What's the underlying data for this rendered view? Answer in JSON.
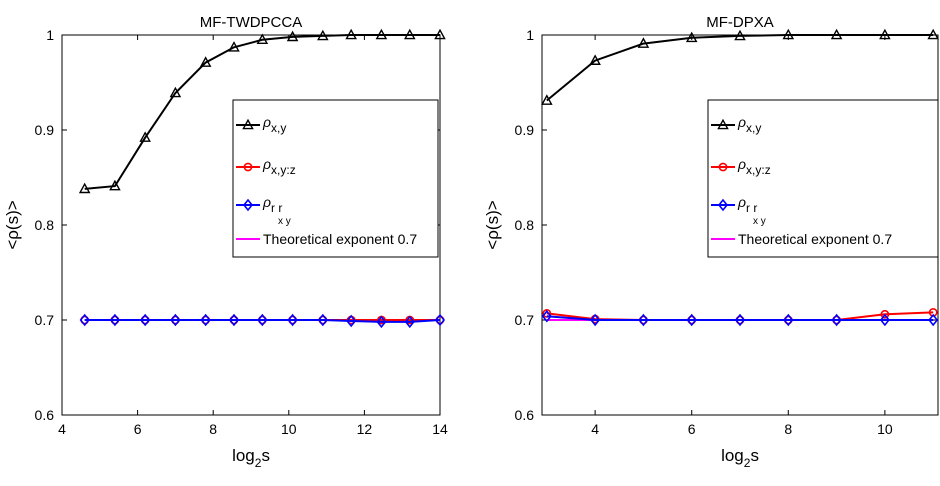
{
  "chart_data": [
    {
      "type": "line",
      "title": "MF-TWDPCCA",
      "xlabel_base": "log",
      "xlabel_sub": "2",
      "xlabel_tail": "s",
      "ylabel": "<ρ(s)>",
      "xlim": [
        4,
        14
      ],
      "ylim": [
        0.6,
        1.0
      ],
      "xticks": [
        4,
        6,
        8,
        10,
        12,
        14
      ],
      "yticks": [
        0.6,
        0.7,
        0.8,
        0.9,
        1.0
      ],
      "ytick_labels": [
        "0.6",
        "0.7",
        "0.8",
        "0.9",
        "1"
      ],
      "x": [
        4.6,
        5.4,
        6.2,
        7.0,
        7.8,
        8.55,
        9.3,
        10.1,
        10.9,
        11.65,
        12.45,
        13.2,
        14.0
      ],
      "legend": "top-right",
      "grid": false,
      "series": [
        {
          "name": "ρx,y",
          "name_main": "ρ",
          "name_sub": "x,y",
          "color": "#000000",
          "marker": "triangle",
          "values": [
            0.838,
            0.841,
            0.892,
            0.939,
            0.971,
            0.987,
            0.995,
            0.998,
            0.999,
            1.0,
            1.0,
            1.0,
            1.0
          ]
        },
        {
          "name": "ρx,y:z",
          "name_main": "ρ",
          "name_sub": "x,y:z",
          "color": "#ff0000",
          "marker": "circle",
          "values": [
            0.7,
            0.7,
            0.7,
            0.7,
            0.7,
            0.7,
            0.7,
            0.7,
            0.7,
            0.7,
            0.7,
            0.7,
            0.7
          ]
        },
        {
          "name": "ρrx ry",
          "name_main": "ρ",
          "name_sub": "r r",
          "name_subsub": "x y",
          "color": "#0000ff",
          "marker": "diamond",
          "values": [
            0.7,
            0.7,
            0.7,
            0.7,
            0.7,
            0.7,
            0.7,
            0.7,
            0.7,
            0.699,
            0.698,
            0.698,
            0.7
          ]
        },
        {
          "name": "Theoretical exponent 0.7",
          "color": "#ff00ff",
          "marker": "none",
          "values": [
            0.7,
            0.7,
            0.7,
            0.7,
            0.7,
            0.7,
            0.7,
            0.7,
            0.7,
            0.7,
            0.7,
            0.7,
            0.7
          ]
        }
      ]
    },
    {
      "type": "line",
      "title": "MF-DPXA",
      "xlabel_base": "log",
      "xlabel_sub": "2",
      "xlabel_tail": "s",
      "ylabel": "<ρ(s)>",
      "xlim": [
        2.9,
        11.1
      ],
      "ylim": [
        0.6,
        1.0
      ],
      "xticks": [
        4,
        6,
        8,
        10
      ],
      "yticks": [
        0.6,
        0.7,
        0.8,
        0.9,
        1.0
      ],
      "ytick_labels": [
        "0.6",
        "0.7",
        "0.8",
        "0.9",
        "1"
      ],
      "x": [
        3,
        4,
        5,
        6,
        7,
        8,
        9,
        10,
        11
      ],
      "legend": "top-right",
      "grid": false,
      "series": [
        {
          "name": "ρx,y",
          "name_main": "ρ",
          "name_sub": "x,y",
          "color": "#000000",
          "marker": "triangle",
          "values": [
            0.931,
            0.973,
            0.991,
            0.997,
            0.999,
            1.0,
            1.0,
            1.0,
            1.0
          ]
        },
        {
          "name": "ρx,y:z",
          "name_main": "ρ",
          "name_sub": "x,y:z",
          "color": "#ff0000",
          "marker": "circle",
          "values": [
            0.707,
            0.701,
            0.7,
            0.7,
            0.7,
            0.7,
            0.7,
            0.706,
            0.708
          ]
        },
        {
          "name": "ρrx ry",
          "name_main": "ρ",
          "name_sub": "r r",
          "name_subsub": "x y",
          "color": "#0000ff",
          "marker": "diamond",
          "values": [
            0.704,
            0.7,
            0.7,
            0.7,
            0.7,
            0.7,
            0.7,
            0.7,
            0.7
          ]
        },
        {
          "name": "Theoretical exponent 0.7",
          "color": "#ff00ff",
          "marker": "none",
          "values": [
            0.7,
            0.7,
            0.7,
            0.7,
            0.7,
            0.7,
            0.7,
            0.7,
            0.7
          ]
        }
      ]
    }
  ]
}
